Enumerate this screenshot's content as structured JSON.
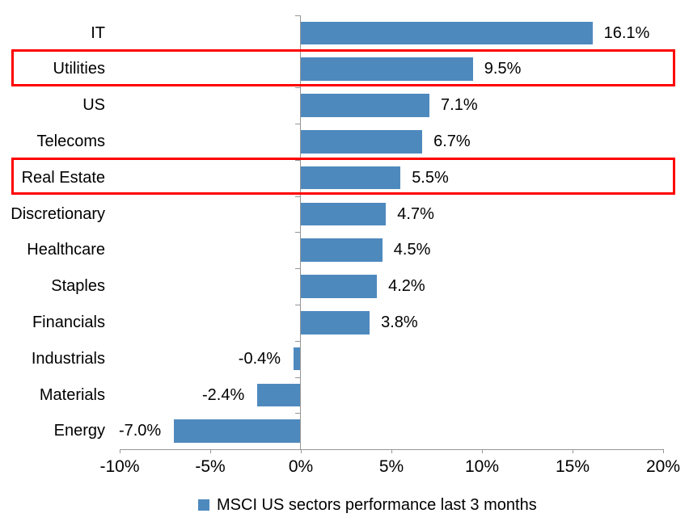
{
  "chart_data": {
    "type": "bar",
    "orientation": "horizontal",
    "categories": [
      "IT",
      "Utilities",
      "US",
      "Telecoms",
      "Real Estate",
      "Discretionary",
      "Healthcare",
      "Staples",
      "Financials",
      "Industrials",
      "Materials",
      "Energy"
    ],
    "values": [
      16.1,
      9.5,
      7.1,
      6.7,
      5.5,
      4.7,
      4.5,
      4.2,
      3.8,
      -0.4,
      -2.4,
      -7.0
    ],
    "value_labels": [
      "16.1%",
      "9.5%",
      "7.1%",
      "6.7%",
      "5.5%",
      "4.7%",
      "4.5%",
      "4.2%",
      "3.8%",
      "-0.4%",
      "-2.4%",
      "-7.0%"
    ],
    "x_ticks": [
      {
        "value": -10,
        "label": "-10%"
      },
      {
        "value": -5,
        "label": "-5%"
      },
      {
        "value": 0,
        "label": "0%"
      },
      {
        "value": 5,
        "label": "5%"
      },
      {
        "value": 10,
        "label": "10%"
      },
      {
        "value": 15,
        "label": "15%"
      },
      {
        "value": 20,
        "label": "20%"
      }
    ],
    "xlim": [
      -10,
      20
    ],
    "grid": false,
    "legend": "MSCI US sectors performance last 3 months",
    "legend_position": "bottom",
    "highlighted_categories": [
      "Utilities",
      "Real Estate"
    ],
    "colors": {
      "bar": "#4E89BE",
      "highlight_box": "#FF0000",
      "axis": "#969696",
      "text": "#000000",
      "background": "#FFFFFF"
    }
  }
}
